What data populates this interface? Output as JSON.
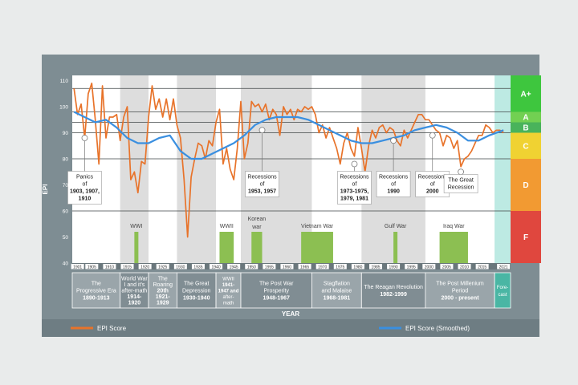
{
  "chart_data": {
    "type": "line",
    "ylabel": "EPI",
    "xlabel": "YEAR",
    "ylim": [
      40,
      112
    ],
    "xlim": [
      1899.5,
      2023
    ],
    "y_ticks": [
      40,
      50,
      60,
      70,
      80,
      90,
      100,
      110
    ],
    "x_ticks": [
      1901,
      1905,
      1910,
      1915,
      1920,
      1925,
      1930,
      1935,
      1940,
      1945,
      1950,
      1955,
      1960,
      1965,
      1970,
      1975,
      1980,
      1985,
      1990,
      1995,
      2000,
      2005,
      2010,
      2015,
      2021
    ],
    "grade_lines": [
      60,
      80,
      90,
      94,
      98,
      107
    ],
    "grades": [
      {
        "label": "A+",
        "from": 98,
        "to": 112,
        "color": "#3ec63e"
      },
      {
        "label": "A",
        "from": 94,
        "to": 98,
        "color": "#72d052"
      },
      {
        "label": "B",
        "from": 90,
        "to": 94,
        "color": "#49b35b"
      },
      {
        "label": "C",
        "from": 80,
        "to": 90,
        "color": "#f0d232"
      },
      {
        "label": "D",
        "from": 60,
        "to": 80,
        "color": "#f29a32"
      },
      {
        "label": "F",
        "from": 40,
        "to": 60,
        "color": "#e0473e"
      }
    ],
    "legend": [
      "EPI Score",
      "EPI Score (Smoothed)"
    ],
    "series": [
      {
        "name": "EPI Score",
        "color": "#e8732a",
        "x": [
          1900,
          1901,
          1902,
          1903,
          1904,
          1905,
          1906,
          1907,
          1908,
          1909,
          1910,
          1911,
          1912,
          1913,
          1914,
          1915,
          1916,
          1917,
          1918,
          1919,
          1920,
          1921,
          1922,
          1923,
          1924,
          1925,
          1926,
          1927,
          1928,
          1929,
          1930,
          1931,
          1932,
          1933,
          1934,
          1935,
          1936,
          1937,
          1938,
          1939,
          1940,
          1941,
          1942,
          1943,
          1944,
          1945,
          1946,
          1947,
          1948,
          1949,
          1950,
          1951,
          1952,
          1953,
          1954,
          1955,
          1956,
          1957,
          1958,
          1959,
          1960,
          1961,
          1962,
          1963,
          1964,
          1965,
          1966,
          1967,
          1968,
          1969,
          1970,
          1971,
          1972,
          1973,
          1974,
          1975,
          1976,
          1977,
          1978,
          1979,
          1980,
          1981,
          1982,
          1983,
          1984,
          1985,
          1986,
          1987,
          1988,
          1989,
          1990,
          1991,
          1992,
          1993,
          1994,
          1995,
          1996,
          1997,
          1998,
          1999,
          2000,
          2001,
          2002,
          2003,
          2004,
          2005,
          2006,
          2007,
          2008,
          2009,
          2010,
          2011,
          2012,
          2013,
          2014,
          2015,
          2016,
          2017,
          2018,
          2019,
          2020,
          2021
        ],
        "y": [
          107,
          97,
          101,
          88,
          105,
          109,
          95,
          78,
          108,
          88,
          96,
          96,
          97,
          87,
          96,
          100,
          72,
          75,
          67,
          79,
          78,
          96,
          108,
          99,
          103,
          96,
          103,
          95,
          103,
          93,
          88,
          72,
          50,
          73,
          80,
          86,
          85,
          80,
          87,
          85,
          94,
          99,
          78,
          84,
          76,
          72,
          84,
          102,
          80,
          86,
          102,
          100,
          101,
          98,
          101,
          95,
          99,
          97,
          89,
          100,
          97,
          99,
          95,
          99,
          98,
          100,
          99,
          100,
          97,
          90,
          93,
          88,
          92,
          88,
          84,
          78,
          86,
          90,
          84,
          81,
          92,
          84,
          75,
          85,
          91,
          88,
          92,
          93,
          90,
          92,
          91,
          87,
          85,
          91,
          88,
          91,
          94,
          97,
          97,
          95,
          95,
          93,
          91,
          90,
          85,
          89,
          88,
          84,
          87,
          77,
          80,
          81,
          83,
          86,
          89,
          89,
          93,
          92,
          90,
          91,
          91,
          90
        ],
        "values": [
          107,
          97,
          101,
          88,
          105,
          109,
          95,
          78,
          108,
          88,
          96,
          96,
          97,
          87,
          96,
          100,
          72,
          75,
          67,
          79,
          78,
          96,
          108,
          99,
          103,
          96,
          103,
          95,
          103,
          93,
          88,
          72,
          50,
          73,
          80,
          86,
          85,
          80,
          87,
          85,
          94,
          99,
          78,
          84,
          76,
          72,
          84,
          102,
          80,
          86,
          102,
          100,
          101,
          98,
          101,
          95,
          99,
          97,
          89,
          100,
          97,
          99,
          95,
          99,
          98,
          100,
          99,
          100,
          97,
          90,
          93,
          88,
          92,
          88,
          84,
          78,
          86,
          90,
          84,
          81,
          92,
          84,
          75,
          85,
          91,
          88,
          92,
          93,
          90,
          92,
          91,
          87,
          85,
          91,
          88,
          91,
          94,
          97,
          97,
          95,
          95,
          93,
          91,
          90,
          85,
          89,
          88,
          84,
          87,
          77,
          80,
          81,
          83,
          86,
          89,
          89,
          93,
          92,
          90,
          91,
          91,
          90
        ]
      },
      {
        "name": "EPI Score (Smoothed)",
        "color": "#3a8fe0",
        "x": [
          1900,
          1903,
          1906,
          1909,
          1912,
          1915,
          1918,
          1921,
          1924,
          1927,
          1930,
          1933,
          1936,
          1939,
          1942,
          1945,
          1948,
          1951,
          1954,
          1957,
          1960,
          1963,
          1966,
          1969,
          1972,
          1975,
          1978,
          1981,
          1984,
          1987,
          1990,
          1993,
          1996,
          1999,
          2002,
          2005,
          2008,
          2011,
          2014,
          2017,
          2021
        ],
        "y": [
          98,
          96,
          94,
          95,
          92,
          88,
          86,
          86,
          88,
          89,
          83,
          80,
          80,
          82,
          84,
          86,
          89,
          93,
          95,
          96,
          96,
          96,
          95,
          93,
          91,
          89,
          87,
          86,
          86,
          87,
          88,
          89,
          91,
          92,
          93,
          92,
          90,
          87,
          87,
          89,
          91
        ],
        "values": [
          98,
          96,
          94,
          95,
          92,
          88,
          86,
          86,
          88,
          89,
          83,
          80,
          80,
          82,
          84,
          86,
          89,
          93,
          95,
          96,
          96,
          96,
          95,
          93,
          91,
          89,
          87,
          86,
          86,
          87,
          88,
          89,
          91,
          92,
          93,
          92,
          90,
          87,
          87,
          89,
          91
        ]
      }
    ],
    "annotations": [
      {
        "lines": [
          "Panics",
          "of",
          "1903, 1907,",
          "1910"
        ],
        "x": 1903,
        "y": 88
      },
      {
        "lines": [
          "Recessions",
          "of",
          "1953, 1957"
        ],
        "x": 1953,
        "y": 91
      },
      {
        "lines": [
          "Recessions",
          "of",
          "1973-1975,",
          "1979, 1981"
        ],
        "x": 1979,
        "y": 78
      },
      {
        "lines": [
          "Recessions",
          "of",
          "1990"
        ],
        "x": 1990,
        "y": 87
      },
      {
        "lines": [
          "Recessions",
          "of",
          "2000"
        ],
        "x": 2001,
        "y": 89
      },
      {
        "lines": [
          "The Great",
          "Recession"
        ],
        "x": 2009,
        "y": 75
      }
    ],
    "wars": [
      {
        "label": "WWI",
        "from": 1917,
        "to": 1918
      },
      {
        "label": "WWII",
        "from": 1941,
        "to": 1945
      },
      {
        "label": "Korean war",
        "from": 1950,
        "to": 1953
      },
      {
        "label": "Vietnam War",
        "from": 1964,
        "to": 1973
      },
      {
        "label": "Gulf War",
        "from": 1990,
        "to": 1991
      },
      {
        "label": "Iraq War",
        "from": 2003,
        "to": 2011
      }
    ],
    "eras": [
      {
        "lines": [
          "The",
          "Progressive Era",
          "1890-1913"
        ],
        "from": 1899.5,
        "to": 1913,
        "shade": "#9aa5aa"
      },
      {
        "lines": [
          "World War",
          "I and it's",
          "after-math",
          "1914-",
          "1920"
        ],
        "from": 1913,
        "to": 1921,
        "shade": "#808d93"
      },
      {
        "lines": [
          "The",
          "Roaring",
          "20th",
          "1921-",
          "1929"
        ],
        "from": 1921,
        "to": 1929,
        "shade": "#9aa5aa"
      },
      {
        "lines": [
          "The Great",
          "Depression",
          "1930-1940"
        ],
        "from": 1929,
        "to": 1940,
        "shade": "#808d93"
      },
      {
        "lines": [
          "WWII",
          "1941-",
          "1947 and",
          "after-",
          "math"
        ],
        "from": 1940,
        "to": 1947,
        "shade": "#9aa5aa"
      },
      {
        "lines": [
          "The Post War",
          "Prosperity",
          "1948-1967"
        ],
        "from": 1947,
        "to": 1967,
        "shade": "#808d93"
      },
      {
        "lines": [
          "Stagflation",
          "and Malaise",
          "1968-1981"
        ],
        "from": 1967,
        "to": 1981,
        "shade": "#9aa5aa"
      },
      {
        "lines": [
          "The Reagan Revolution",
          "1982-1999"
        ],
        "from": 1981,
        "to": 1999,
        "shade": "#808d93"
      },
      {
        "lines": [
          "The Post Millenium",
          "Period",
          "2000 - present"
        ],
        "from": 1999,
        "to": 2018.5,
        "shade": "#9aa5aa"
      },
      {
        "lines": [
          "Fore-",
          "cast"
        ],
        "from": 2018.5,
        "to": 2023,
        "shade": "#4ab6a4"
      }
    ],
    "forecast_from": 2018.5,
    "colors": {
      "frame": "#7e8d93",
      "plot_bg": "#ffffff",
      "band_bg": "#dddddd",
      "war_bar": "#8cbf52",
      "forecast_bg": "#bdeae3"
    }
  }
}
